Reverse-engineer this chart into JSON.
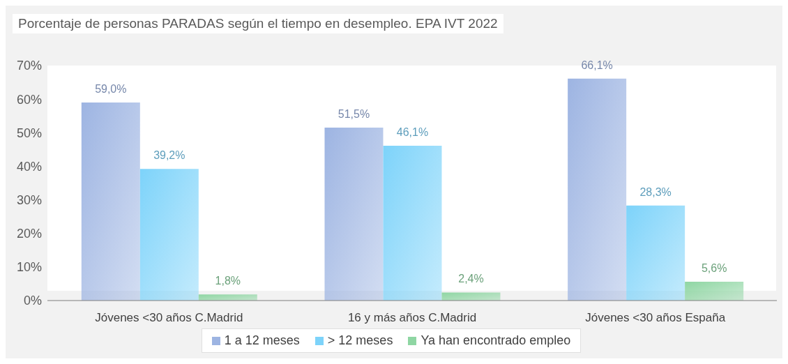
{
  "chart_data": {
    "type": "bar",
    "title": "Porcentaje de personas PARADAS según el tiempo en desempleo. EPA IVT 2022",
    "categories": [
      "Jóvenes <30 años C.Madrid",
      "16 y más años C.Madrid",
      "Jóvenes <30 años España"
    ],
    "series": [
      {
        "name": "1 a 12 meses",
        "color": "#9db4e2",
        "values": [
          59.0,
          51.5,
          66.1
        ],
        "value_labels": [
          "59,0%",
          "51,5%",
          "66,1%"
        ]
      },
      {
        "name": "> 12 meses",
        "color": "#7dd3fa",
        "values": [
          39.2,
          46.1,
          28.3
        ],
        "value_labels": [
          "39,2%",
          "46,1%",
          "28,3%"
        ]
      },
      {
        "name": "Ya han encontrado empleo",
        "color": "#8fd6a3",
        "values": [
          1.8,
          2.4,
          5.6
        ],
        "value_labels": [
          "1,8%",
          "2,4%",
          "5,6%"
        ]
      }
    ],
    "ylim": [
      0,
      70
    ],
    "yticks": [
      {
        "value": 0,
        "label": "0%"
      },
      {
        "value": 10,
        "label": "10%"
      },
      {
        "value": 20,
        "label": "20%"
      },
      {
        "value": 30,
        "label": "30%"
      },
      {
        "value": 40,
        "label": "40%"
      },
      {
        "value": 50,
        "label": "50%"
      },
      {
        "value": 60,
        "label": "60%"
      },
      {
        "value": 70,
        "label": "70%"
      }
    ],
    "grid": false,
    "legend": "bottom"
  }
}
